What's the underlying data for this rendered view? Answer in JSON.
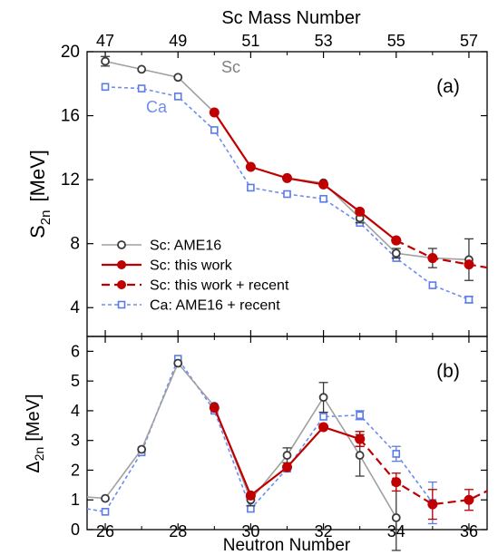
{
  "figure": {
    "top_axis_label": "Sc Mass Number",
    "top_ticks": [
      "47",
      "49",
      "51",
      "53",
      "55",
      "57"
    ],
    "top_tick_values": [
      26,
      28,
      30,
      32,
      34,
      36
    ],
    "xlabel": "Neutron Number",
    "x_ticks": [
      "26",
      "28",
      "30",
      "32",
      "34",
      "36"
    ],
    "x_tick_values": [
      26,
      28,
      30,
      32,
      34,
      36
    ],
    "xlim": [
      25.5,
      36.5
    ]
  },
  "chart_data": [
    {
      "type": "line",
      "panel_label": "(a)",
      "ylabel_main": "S",
      "ylabel_sub": "2n",
      "ylabel_unit": "[MeV]",
      "ylim": [
        2.2,
        20
      ],
      "y_ticks": [
        4,
        8,
        12,
        16,
        20
      ],
      "legend_position": "bottom-left",
      "annotations": [
        {
          "text": "Sc",
          "series": "Sc: AME16",
          "color": "#808080"
        },
        {
          "text": "Ca",
          "series": "Ca: AME16 + recent",
          "color": "#6f8df0"
        }
      ],
      "series": [
        {
          "name": "Sc: AME16",
          "color": "#a0a0a0",
          "marker_color": "#3a3a3a",
          "marker": "open-circle",
          "line": "solid",
          "points": [
            {
              "x": 26,
              "y": 19.4,
              "err": 0.3
            },
            {
              "x": 27,
              "y": 18.9
            },
            {
              "x": 28,
              "y": 18.4
            },
            {
              "x": 29,
              "y": 16.2
            },
            {
              "x": 30,
              "y": 12.8
            },
            {
              "x": 31,
              "y": 12.1
            },
            {
              "x": 32,
              "y": 11.8
            },
            {
              "x": 33,
              "y": 9.6,
              "err": 0.3
            },
            {
              "x": 34,
              "y": 7.4,
              "err": 0.3
            },
            {
              "x": 35,
              "y": 7.1,
              "err": 0.6
            },
            {
              "x": 36,
              "y": 7.0,
              "err": 1.3
            }
          ]
        },
        {
          "name": "Sc: this work",
          "color": "#c00000",
          "marker_color": "#c00000",
          "marker": "filled-circle",
          "line": "solid",
          "points": [
            {
              "x": 29,
              "y": 16.2
            },
            {
              "x": 30,
              "y": 12.8
            },
            {
              "x": 31,
              "y": 12.1
            },
            {
              "x": 32,
              "y": 11.7
            },
            {
              "x": 33,
              "y": 10.0
            },
            {
              "x": 34,
              "y": 8.2
            }
          ]
        },
        {
          "name": "Sc: this work + recent",
          "color": "#c00000",
          "marker_color": "#c00000",
          "marker": "filled-circle",
          "line": "dashed",
          "points": [
            {
              "x": 34,
              "y": 8.2
            },
            {
              "x": 35,
              "y": 7.1
            },
            {
              "x": 36,
              "y": 6.7
            },
            {
              "x": 36.5,
              "y": 6.5
            }
          ]
        },
        {
          "name": "Ca: AME16 + recent",
          "color": "#6f8df0",
          "marker_color": "#5a7be8",
          "marker": "open-square",
          "line": "dotted",
          "points": [
            {
              "x": 26,
              "y": 17.8
            },
            {
              "x": 27,
              "y": 17.7
            },
            {
              "x": 28,
              "y": 17.2
            },
            {
              "x": 29,
              "y": 15.1
            },
            {
              "x": 30,
              "y": 11.5
            },
            {
              "x": 31,
              "y": 11.1
            },
            {
              "x": 32,
              "y": 10.8
            },
            {
              "x": 33,
              "y": 9.3
            },
            {
              "x": 34,
              "y": 7.1
            },
            {
              "x": 35,
              "y": 5.4
            },
            {
              "x": 36,
              "y": 4.5,
              "err": 0.2
            }
          ]
        }
      ]
    },
    {
      "type": "line",
      "panel_label": "(b)",
      "ylabel_main": "Δ",
      "ylabel_sub": "2n",
      "ylabel_unit": "[MeV]",
      "ylim": [
        0,
        6.5
      ],
      "y_ticks": [
        0,
        1,
        2,
        3,
        4,
        5,
        6
      ],
      "series": [
        {
          "name": "Sc: AME16",
          "color": "#a0a0a0",
          "marker_color": "#3a3a3a",
          "marker": "open-circle",
          "line": "solid",
          "points": [
            {
              "x": 25.5,
              "y": 1.1
            },
            {
              "x": 26,
              "y": 1.05
            },
            {
              "x": 27,
              "y": 2.7
            },
            {
              "x": 28,
              "y": 5.6
            },
            {
              "x": 29,
              "y": 4.15
            },
            {
              "x": 30,
              "y": 1.0,
              "err": 0.2
            },
            {
              "x": 31,
              "y": 2.5,
              "err": 0.25
            },
            {
              "x": 32,
              "y": 4.45,
              "err": 0.5
            },
            {
              "x": 33,
              "y": 2.5,
              "err": 0.7
            },
            {
              "x": 34,
              "y": 0.4,
              "err": 1.1
            }
          ]
        },
        {
          "name": "Sc: this work",
          "color": "#c00000",
          "marker_color": "#c00000",
          "marker": "filled-circle",
          "line": "solid",
          "points": [
            {
              "x": 29,
              "y": 4.1
            },
            {
              "x": 30,
              "y": 1.15
            },
            {
              "x": 31,
              "y": 2.1
            },
            {
              "x": 32,
              "y": 3.45
            },
            {
              "x": 33,
              "y": 3.05,
              "err": 0.25
            }
          ]
        },
        {
          "name": "Sc: this work + recent",
          "color": "#c00000",
          "marker_color": "#c00000",
          "marker": "filled-circle",
          "line": "dashed",
          "points": [
            {
              "x": 33,
              "y": 3.05,
              "err": 0.25
            },
            {
              "x": 34,
              "y": 1.6,
              "err": 0.3
            },
            {
              "x": 35,
              "y": 0.85,
              "err": 0.5
            },
            {
              "x": 36,
              "y": 1.0,
              "err": 0.35
            },
            {
              "x": 36.5,
              "y": 1.3
            }
          ]
        },
        {
          "name": "Ca: AME16 + recent",
          "color": "#6f8df0",
          "marker_color": "#5a7be8",
          "marker": "open-square",
          "line": "dotted",
          "points": [
            {
              "x": 25.5,
              "y": 0.7
            },
            {
              "x": 26,
              "y": 0.6
            },
            {
              "x": 27,
              "y": 2.6
            },
            {
              "x": 28,
              "y": 5.75
            },
            {
              "x": 29,
              "y": 4.0
            },
            {
              "x": 30,
              "y": 0.7
            },
            {
              "x": 31,
              "y": 2.05
            },
            {
              "x": 32,
              "y": 3.8
            },
            {
              "x": 33,
              "y": 3.85,
              "err": 0.15
            },
            {
              "x": 34,
              "y": 2.55,
              "err": 0.25
            },
            {
              "x": 35,
              "y": 0.9,
              "err": 0.7
            }
          ]
        }
      ]
    }
  ]
}
